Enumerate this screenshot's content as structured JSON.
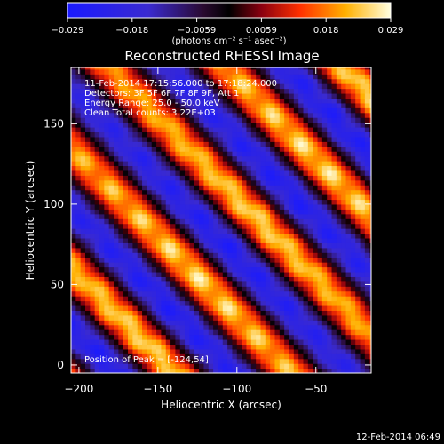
{
  "chart_data": {
    "type": "heatmap",
    "title": "Reconstructed RHESSI Image",
    "xlabel": "Heliocentric X (arcsec)",
    "ylabel": "Heliocentric Y (arcsec)",
    "xlim": [
      -205,
      -15
    ],
    "ylim": [
      -5,
      185
    ],
    "xticks": [
      -200,
      -150,
      -100,
      -50
    ],
    "yticks": [
      0,
      50,
      100,
      150
    ],
    "colorbar": {
      "min": -0.029,
      "max": 0.029,
      "ticks": [
        "-0.029",
        "-0.018",
        "-0.0059",
        "0.0059",
        "0.018",
        "0.029"
      ],
      "unit_label": "(photons cm⁻² s⁻¹ asec⁻²)"
    },
    "info_lines": [
      "11-Feb-2014 17:15:56.000 to 17:18:24.000",
      "Detectors: 3F 5F 6F 7F 8F 9F, Att 1",
      "Energy Range: 25.0 - 50.0 keV",
      "Clean     Total counts: 3.22E+03"
    ],
    "peak_label": "Position of Peak = [-124,54]",
    "peak": [
      -124,
      54
    ],
    "pattern": {
      "band_direction": [
        1,
        -1
      ],
      "band_period_arcsec": 74,
      "peak_value": 0.029,
      "min_value": -0.029
    },
    "timestamp": "12-Feb-2014 06:49"
  }
}
